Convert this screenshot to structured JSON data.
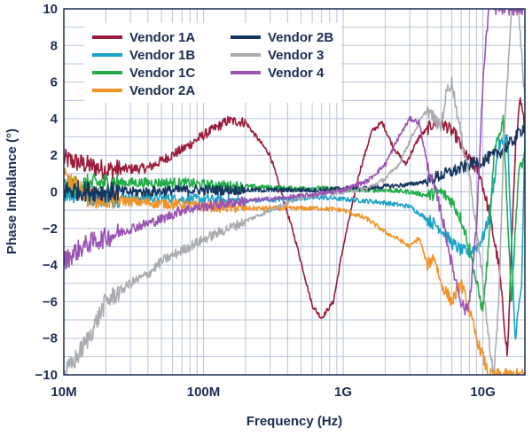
{
  "chart_data": {
    "type": "line",
    "title": "",
    "xlabel": "Frequency (Hz)",
    "ylabel": "Phase Imbalance (°)",
    "x_scale": "log",
    "xlim": [
      10000000,
      20000000000
    ],
    "ylim": [
      -10,
      10
    ],
    "x_ticks": [
      {
        "value": 10000000,
        "label": "10M"
      },
      {
        "value": 100000000,
        "label": "100M"
      },
      {
        "value": 1000000000,
        "label": "1G"
      },
      {
        "value": 10000000000,
        "label": "10G"
      }
    ],
    "y_ticks": [
      {
        "value": 10,
        "label": "10"
      },
      {
        "value": 8,
        "label": "8"
      },
      {
        "value": 6,
        "label": "6"
      },
      {
        "value": 4,
        "label": "4"
      },
      {
        "value": 2,
        "label": "2"
      },
      {
        "value": 0,
        "label": "0"
      },
      {
        "value": -2,
        "label": "−2"
      },
      {
        "value": -4,
        "label": "−4"
      },
      {
        "value": -6,
        "label": "−6"
      },
      {
        "value": -8,
        "label": "−8"
      },
      {
        "value": -10,
        "label": "−10"
      }
    ],
    "grid": true,
    "legend_position": "top-left",
    "series": [
      {
        "name": "Vendor 1A",
        "color": "#9b1b3a",
        "x": [
          10000000,
          20000000,
          40000000,
          70000000,
          100000000,
          150000000,
          200000000,
          300000000,
          450000000,
          600000000,
          700000000,
          850000000,
          1000000000,
          1300000000,
          1600000000,
          1900000000,
          2300000000,
          2800000000,
          3500000000,
          4500000000,
          5500000000,
          6500000000,
          7500000000,
          8500000000,
          9500000000,
          11000000000,
          13000000000,
          15000000000,
          17000000000,
          18500000000,
          20000000000
        ],
        "y": [
          1.8,
          1.2,
          1.3,
          2.3,
          3.1,
          3.9,
          3.8,
          2.0,
          -2.5,
          -6.2,
          -6.9,
          -6.0,
          -3.0,
          1.0,
          3.3,
          3.8,
          2.4,
          1.5,
          3.0,
          3.8,
          3.6,
          3.0,
          2.0,
          1.5,
          1.0,
          -1.0,
          -4.0,
          -9.0,
          2.0,
          5.0,
          3.5
        ]
      },
      {
        "name": "Vendor 1B",
        "color": "#1ba3c9",
        "x": [
          10000000,
          20000000,
          40000000,
          70000000,
          100000000,
          200000000,
          400000000,
          700000000,
          1000000000,
          1500000000,
          2000000000,
          3000000000,
          4000000000,
          5000000000,
          6000000000,
          7000000000,
          8000000000,
          9000000000,
          10000000000,
          11000000000,
          12000000000,
          13000000000,
          15000000000,
          17000000000,
          19000000000,
          20000000000
        ],
        "y": [
          0.0,
          -0.3,
          -0.3,
          -0.4,
          -0.4,
          -0.5,
          -0.4,
          -0.3,
          -0.4,
          -0.5,
          -0.6,
          -0.8,
          -1.5,
          -2.0,
          -2.8,
          -3.2,
          -3.3,
          -3.0,
          -2.5,
          -1.5,
          0.5,
          2.5,
          3.0,
          -8.0,
          -5.0,
          3.0
        ]
      },
      {
        "name": "Vendor 1C",
        "color": "#21ad48",
        "x": [
          10000000,
          20000000,
          40000000,
          70000000,
          100000000,
          200000000,
          400000000,
          700000000,
          1000000000,
          2000000000,
          3000000000,
          4000000000,
          5000000000,
          6000000000,
          7000000000,
          8000000000,
          9000000000,
          10000000000,
          11000000000,
          12000000000,
          14000000000,
          16000000000,
          18000000000,
          20000000000
        ],
        "y": [
          0.3,
          0.5,
          0.5,
          0.5,
          0.4,
          0.3,
          0.2,
          0.2,
          0.1,
          0.1,
          0.0,
          -0.2,
          0.0,
          -0.5,
          -1.5,
          -3.0,
          -5.0,
          -6.5,
          -3.0,
          2.0,
          4.0,
          -6.0,
          1.0,
          2.0
        ]
      },
      {
        "name": "Vendor 2A",
        "color": "#f39327",
        "x": [
          10000000,
          15000000,
          20000000,
          40000000,
          70000000,
          100000000,
          200000000,
          400000000,
          700000000,
          1000000000,
          1500000000,
          2000000000,
          2500000000,
          3000000000,
          3500000000,
          4000000000,
          4500000000,
          5000000000,
          6000000000,
          7000000000,
          8000000000,
          9000000000,
          10000000000,
          11000000000,
          12000000000
        ],
        "y": [
          0.8,
          -0.3,
          -0.4,
          -0.6,
          -0.7,
          -0.8,
          -0.9,
          -0.9,
          -0.9,
          -1.0,
          -1.5,
          -2.2,
          -2.6,
          -3.0,
          -2.5,
          -4.0,
          -3.5,
          -5.0,
          -6.0,
          -5.0,
          -6.5,
          -8.0,
          -9.0,
          -10.0,
          -10.0
        ]
      },
      {
        "name": "Vendor 2B",
        "color": "#16365f",
        "x": [
          10000000,
          20000000,
          40000000,
          70000000,
          100000000,
          200000000,
          400000000,
          700000000,
          1000000000,
          1500000000,
          2000000000,
          3000000000,
          4000000000,
          5000000000,
          6000000000,
          7000000000,
          8000000000,
          10000000000,
          12000000000,
          14000000000,
          16000000000,
          18000000000,
          20000000000
        ],
        "y": [
          0.1,
          0.0,
          0.0,
          0.1,
          0.1,
          0.1,
          0.1,
          0.1,
          0.2,
          0.2,
          0.3,
          0.4,
          0.6,
          0.9,
          1.1,
          1.3,
          1.5,
          1.7,
          2.0,
          2.3,
          2.7,
          3.2,
          3.6
        ]
      },
      {
        "name": "Vendor 3",
        "color": "#a9abae",
        "x": [
          10000000,
          12000000,
          15000000,
          20000000,
          30000000,
          40000000,
          50000000,
          70000000,
          100000000,
          150000000,
          200000000,
          300000000,
          400000000,
          500000000,
          700000000,
          1000000000,
          1500000000,
          2000000000,
          2500000000,
          3000000000,
          3500000000,
          4000000000,
          4500000000,
          5000000000,
          5500000000,
          6000000000,
          7000000000,
          8000000000,
          9000000000,
          10000000000,
          11000000000,
          12000000000,
          13000000000,
          14000000000,
          16000000000,
          18000000000,
          20000000000
        ],
        "y": [
          -10.0,
          -9.2,
          -8.0,
          -6.0,
          -5.0,
          -4.5,
          -3.8,
          -3.2,
          -2.6,
          -2.0,
          -1.6,
          -1.0,
          -0.6,
          -0.3,
          -0.1,
          0.0,
          0.2,
          0.7,
          1.5,
          2.8,
          3.8,
          4.5,
          4.0,
          3.5,
          5.5,
          6.0,
          3.0,
          1.0,
          -2.0,
          -5.0,
          -8.0,
          -10.0,
          -6.0,
          2.0,
          10.0,
          10.0,
          5.0
        ]
      },
      {
        "name": "Vendor 4",
        "color": "#9a53b4",
        "x": [
          10000000,
          12000000,
          15000000,
          20000000,
          30000000,
          50000000,
          70000000,
          100000000,
          200000000,
          400000000,
          700000000,
          1000000000,
          1500000000,
          2000000000,
          2500000000,
          3000000000,
          3500000000,
          4000000000,
          5000000000,
          6000000000,
          7000000000,
          7500000000,
          8000000000,
          9000000000,
          10000000000,
          11000000000,
          12000000000
        ],
        "y": [
          -3.8,
          -3.3,
          -2.8,
          -2.5,
          -2.0,
          -1.5,
          -1.0,
          -0.8,
          -0.5,
          -0.3,
          -0.1,
          0.1,
          0.6,
          1.5,
          3.0,
          4.0,
          3.8,
          1.5,
          -1.0,
          -4.0,
          -6.0,
          -6.5,
          -6.0,
          -2.0,
          6.0,
          10.0,
          10.0
        ]
      }
    ]
  }
}
